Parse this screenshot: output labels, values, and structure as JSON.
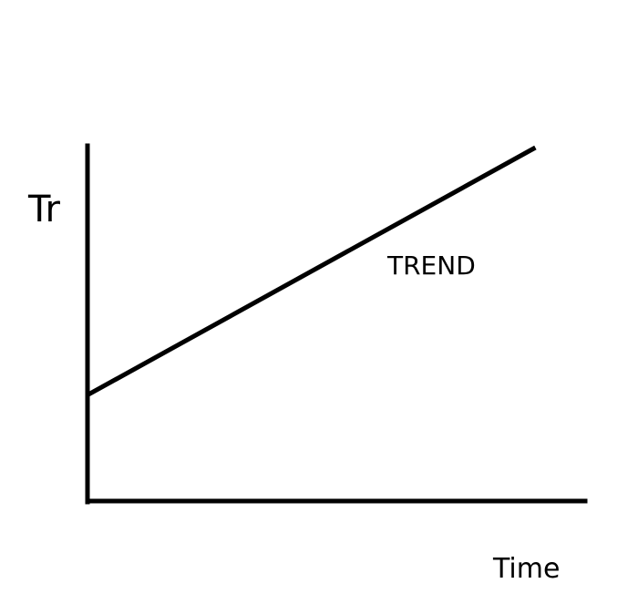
{
  "chart_data": {
    "type": "line",
    "title": "",
    "xlabel": "Time",
    "ylabel": "Tr",
    "xlim": [
      0,
      1
    ],
    "ylim": [
      0,
      1
    ],
    "grid": false,
    "ticks": false,
    "series": [
      {
        "x": [
          0,
          0.9
        ],
        "y": [
          0.3,
          1.0
        ]
      }
    ],
    "annotations": [
      {
        "text": "TREND"
      }
    ],
    "colors": {
      "line": "#000000",
      "axis": "#000000",
      "background": "#ffffff"
    }
  }
}
